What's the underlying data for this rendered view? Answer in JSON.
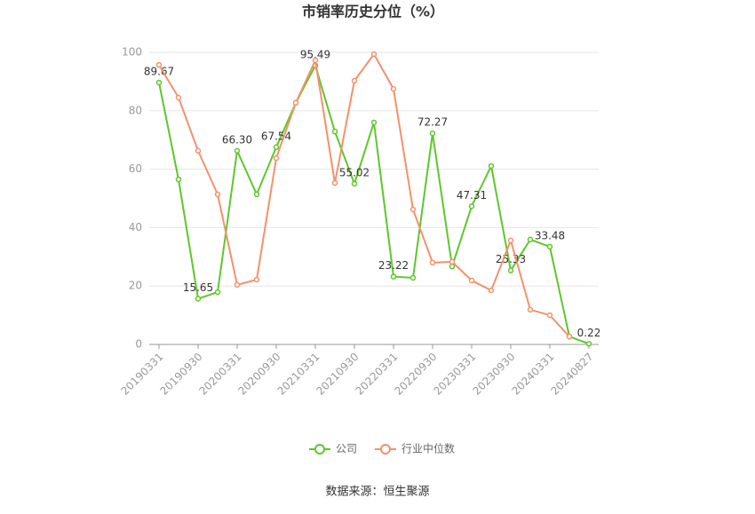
{
  "chart_data": {
    "type": "line",
    "title": "市销率历史分位（%）",
    "categories": [
      "20190331",
      null,
      "20190930",
      null,
      "20200331",
      null,
      "20200930",
      null,
      "20210331",
      null,
      "20210930",
      null,
      "20220331",
      null,
      "20220930",
      null,
      "20230331",
      null,
      "20230930",
      null,
      "20240331",
      null,
      "20240827"
    ],
    "series": [
      {
        "name": "公司",
        "color": "#5ec72b",
        "values": [
          89.67,
          56.5,
          15.65,
          17.9,
          66.3,
          51.4,
          67.54,
          82.7,
          95.49,
          72.9,
          55.02,
          76,
          23.22,
          22.8,
          72.27,
          26.7,
          47.31,
          61.1,
          25.33,
          35.9,
          33.48,
          2.7,
          0.22
        ],
        "value_labels": [
          "89.67",
          null,
          "15.65",
          null,
          "66.30",
          null,
          "67.54",
          null,
          "95.49",
          null,
          "55.02",
          null,
          "23.22",
          null,
          "72.27",
          null,
          "47.31",
          null,
          "25.33",
          null,
          "33.48",
          null,
          "0.22"
        ]
      },
      {
        "name": "行业中位数",
        "color": "#f4916b",
        "values": [
          95.7,
          84.5,
          66.3,
          51.4,
          20.4,
          22.2,
          63.8,
          82.7,
          97.3,
          55.3,
          90.3,
          99.4,
          87.5,
          46.2,
          28,
          28.3,
          21.9,
          18.5,
          35.6,
          11.9,
          10,
          2.7,
          null
        ]
      }
    ],
    "ylim": [
      0,
      100
    ],
    "yticks": [
      0,
      20,
      40,
      60,
      80,
      100
    ],
    "grid": true,
    "legend": "bottom",
    "source": "数据来源：恒生聚源"
  }
}
